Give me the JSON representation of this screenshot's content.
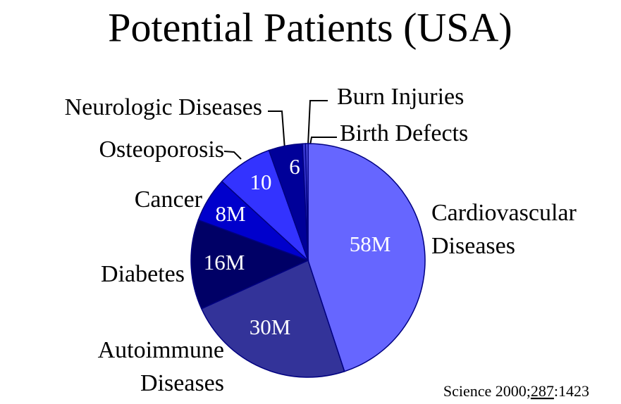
{
  "chart_data": {
    "type": "pie",
    "title": "Potential Patients (USA)",
    "categories": [
      "Cardiovascular\nDiseases",
      "Autoimmune\nDiseases",
      "Diabetes",
      "Cancer",
      "Osteoporosis",
      "Neurologic Diseases",
      "Burn Injuries",
      "Birth Defects"
    ],
    "values": [
      58,
      30,
      16,
      8,
      10,
      6,
      0.6,
      0.4
    ],
    "value_labels": [
      "58M",
      "30M",
      "16M",
      "8M",
      "10",
      "6",
      null,
      null
    ],
    "colors": [
      "#6666ff",
      "#333399",
      "#000066",
      "#0000cc",
      "#3333ff",
      "#000099",
      "#3333cc",
      "#6666ff"
    ],
    "source": [
      "Science 2000;",
      "287",
      ":1423"
    ]
  }
}
